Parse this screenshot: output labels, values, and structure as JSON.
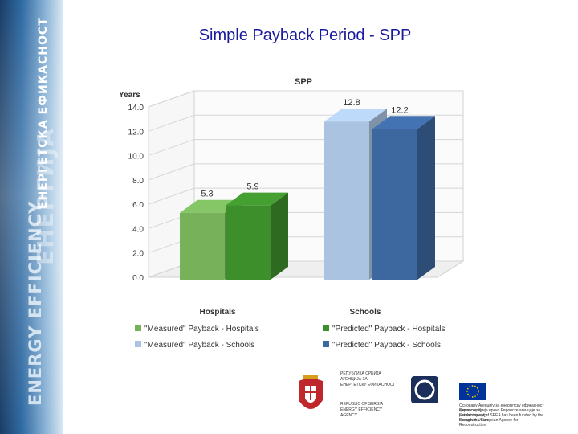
{
  "slide": {
    "title": "Simple Payback Period - SPP",
    "sidebar_text": [
      "ENERGY EFFICIENCY",
      "ЕНЕРГИЈА",
      "ЕНЕРГЕТСКА ЕФИКАСНОСТ"
    ]
  },
  "chart_data": {
    "type": "bar",
    "title": "SPP",
    "ylabel": "Years",
    "ylim": [
      0,
      14
    ],
    "yticks": [
      "0.0",
      "2.0",
      "4.0",
      "6.0",
      "8.0",
      "10.0",
      "12.0",
      "14.0"
    ],
    "categories": [
      "Hospitals",
      "Schools"
    ],
    "series": [
      {
        "name": "\"Measured\" Payback - Hospitals",
        "values": [
          5.3,
          null
        ],
        "color": "#77b25b"
      },
      {
        "name": "\"Predicted\" Payback - Hospitals",
        "values": [
          5.9,
          null
        ],
        "color": "#3d8f2c"
      },
      {
        "name": "\"Measured\" Payback - Schools",
        "values": [
          null,
          12.8
        ],
        "color": "#a9c3e0"
      },
      {
        "name": "\"Predicted\" Payback - Schools",
        "values": [
          null,
          12.2
        ],
        "color": "#3c679f"
      }
    ],
    "bar_labels": [
      {
        "series": 0,
        "category": 0,
        "text": "5.3"
      },
      {
        "series": 1,
        "category": 0,
        "text": "5.9"
      },
      {
        "series": 2,
        "category": 1,
        "text": "12.8"
      },
      {
        "series": 3,
        "category": 1,
        "text": "12.2"
      }
    ],
    "legend_position": "bottom",
    "grid": true
  },
  "logos": {
    "serbia_agency": [
      "РЕПУБЛИКА СРБИЈА",
      "АГЕНЦИЈА ЗА",
      "ЕНЕРГЕТСКУ ЕФИКАСНОСТ",
      "REPUBLIC OF SERBIA",
      "ENERGY EFFICIENCY",
      "AGENCY"
    ],
    "eu_text": [
      "Основану Агенцију за енергетску ефикасност финансирају",
      "Европска Унија преко Европске агенције за реконструкцију",
      "Establishment of SEEA has been funded by the European Union",
      "through the European Agency for Reconstruction"
    ]
  }
}
